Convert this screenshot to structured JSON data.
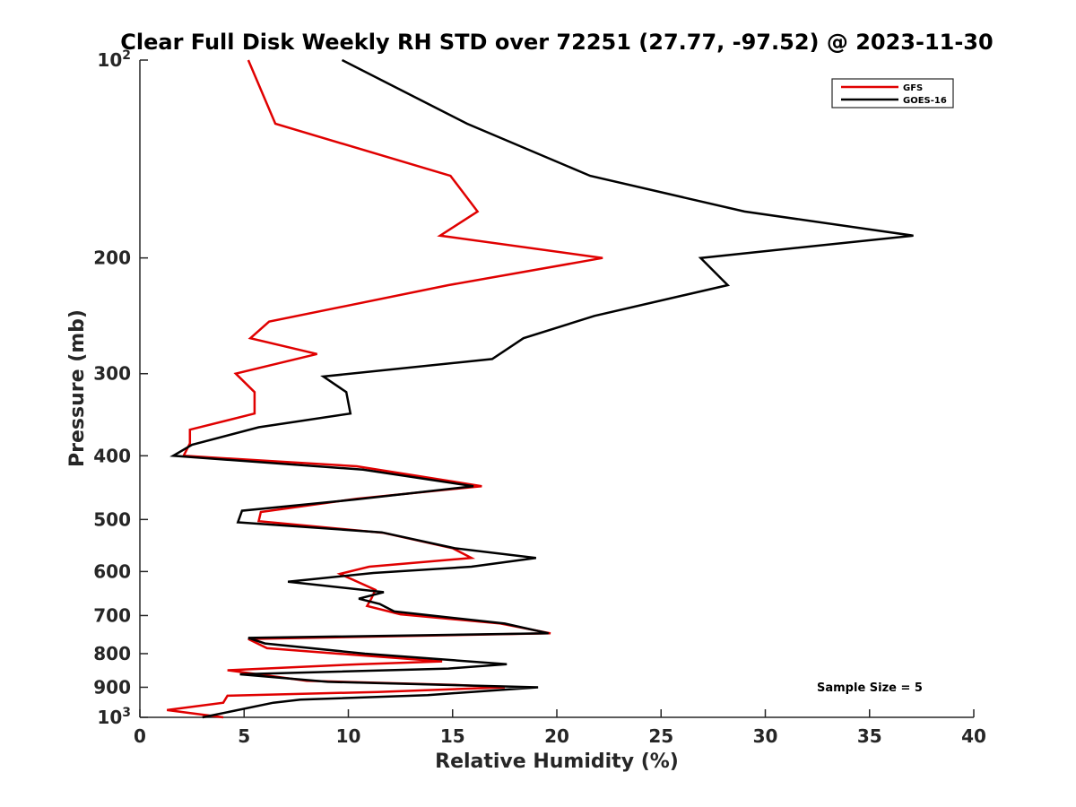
{
  "chart_data": {
    "type": "line",
    "title": "Clear Full Disk Weekly RH STD over 72251 (27.77, -97.52) @ 2023-11-30",
    "xlabel": "Relative Humidity (%)",
    "ylabel": "Pressure (mb)",
    "xlim": [
      0,
      40
    ],
    "ylim": [
      100,
      1000
    ],
    "y_scale": "log",
    "y_reversed": true,
    "x_ticks": [
      "0",
      "5",
      "10",
      "15",
      "20",
      "25",
      "30",
      "35",
      "40"
    ],
    "y_ticks": [
      {
        "value": 100,
        "base": "10",
        "exp": "2"
      },
      {
        "value": 200,
        "label": "200"
      },
      {
        "value": 300,
        "label": "300"
      },
      {
        "value": 400,
        "label": "400"
      },
      {
        "value": 500,
        "label": "500"
      },
      {
        "value": 600,
        "label": "600"
      },
      {
        "value": 700,
        "label": "700"
      },
      {
        "value": 800,
        "label": "800"
      },
      {
        "value": 900,
        "label": "900"
      },
      {
        "value": 1000,
        "base": "10",
        "exp": "3"
      }
    ],
    "grid": false,
    "legend_position": "top-right",
    "annotation": "Sample Size = 5",
    "series": [
      {
        "name": "GFS",
        "color": "#e00000",
        "points": [
          [
            5.2,
            100
          ],
          [
            6.5,
            125
          ],
          [
            14.9,
            150
          ],
          [
            16.2,
            170
          ],
          [
            14.4,
            185
          ],
          [
            22.2,
            200
          ],
          [
            14.8,
            220
          ],
          [
            6.2,
            250
          ],
          [
            5.3,
            265
          ],
          [
            8.5,
            280
          ],
          [
            4.6,
            300
          ],
          [
            5.5,
            320
          ],
          [
            5.5,
            345
          ],
          [
            2.4,
            365
          ],
          [
            2.4,
            383
          ],
          [
            2.1,
            400
          ],
          [
            10.4,
            415
          ],
          [
            16.4,
            445
          ],
          [
            10.4,
            465
          ],
          [
            5.8,
            487
          ],
          [
            5.7,
            503
          ],
          [
            11.7,
            524
          ],
          [
            15.0,
            553
          ],
          [
            15.9,
            572
          ],
          [
            11.0,
            590
          ],
          [
            9.6,
            605
          ],
          [
            11.3,
            640
          ],
          [
            11.1,
            660
          ],
          [
            10.9,
            677
          ],
          [
            12.5,
            697
          ],
          [
            17.3,
            720
          ],
          [
            19.7,
            745
          ],
          [
            5.2,
            760
          ],
          [
            6.1,
            785
          ],
          [
            9.5,
            800
          ],
          [
            14.5,
            822
          ],
          [
            10.6,
            830
          ],
          [
            4.2,
            848
          ],
          [
            8.0,
            880
          ],
          [
            15.3,
            893
          ],
          [
            17.5,
            900
          ],
          [
            11.4,
            915
          ],
          [
            4.2,
            927
          ],
          [
            4.0,
            950
          ],
          [
            1.3,
            975
          ],
          [
            4.0,
            1000
          ]
        ]
      },
      {
        "name": "GOES-16",
        "color": "#000000",
        "points": [
          [
            9.7,
            100
          ],
          [
            15.7,
            125
          ],
          [
            21.6,
            150
          ],
          [
            29.0,
            170
          ],
          [
            37.1,
            185
          ],
          [
            26.9,
            200
          ],
          [
            28.2,
            220
          ],
          [
            21.8,
            245
          ],
          [
            18.4,
            265
          ],
          [
            16.9,
            285
          ],
          [
            8.8,
            303
          ],
          [
            9.9,
            320
          ],
          [
            10.1,
            345
          ],
          [
            5.7,
            362
          ],
          [
            2.5,
            385
          ],
          [
            1.6,
            400
          ],
          [
            10.7,
            420
          ],
          [
            16.0,
            445
          ],
          [
            10.4,
            466
          ],
          [
            4.9,
            485
          ],
          [
            4.7,
            505
          ],
          [
            11.6,
            523
          ],
          [
            15.1,
            553
          ],
          [
            19.0,
            572
          ],
          [
            15.9,
            590
          ],
          [
            11.2,
            603
          ],
          [
            7.1,
            622
          ],
          [
            11.7,
            645
          ],
          [
            10.5,
            660
          ],
          [
            11.5,
            672
          ],
          [
            12.2,
            690
          ],
          [
            17.5,
            720
          ],
          [
            19.6,
            745
          ],
          [
            5.2,
            757
          ],
          [
            6.0,
            772
          ],
          [
            10.8,
            800
          ],
          [
            17.6,
            830
          ],
          [
            14.8,
            843
          ],
          [
            4.8,
            860
          ],
          [
            9.0,
            883
          ],
          [
            19.1,
            900
          ],
          [
            13.8,
            925
          ],
          [
            7.7,
            940
          ],
          [
            6.4,
            950
          ],
          [
            3.0,
            1000
          ]
        ]
      }
    ]
  }
}
